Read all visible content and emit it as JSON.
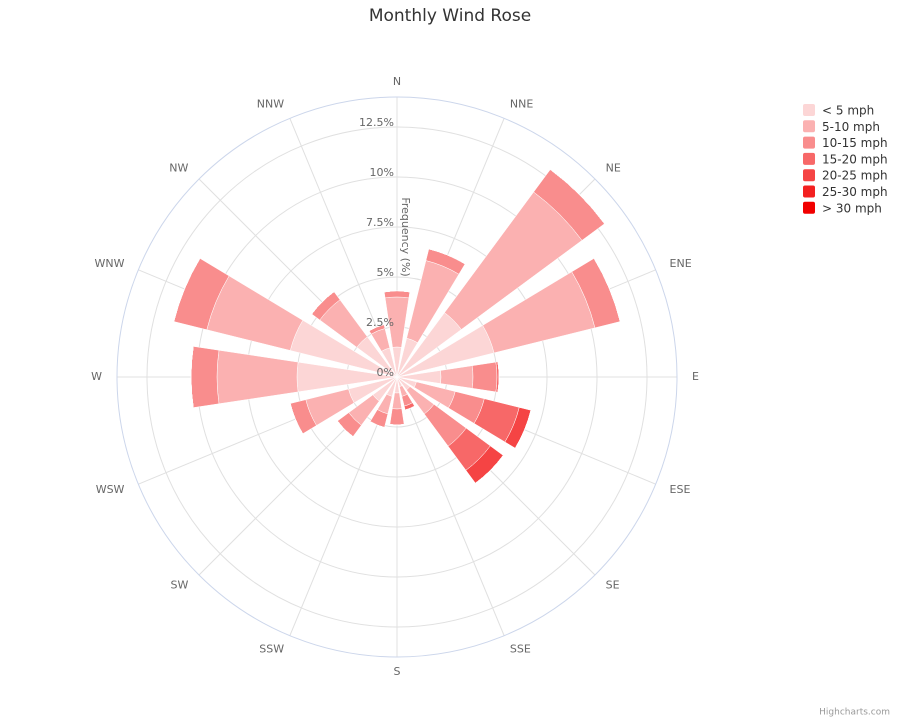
{
  "chart_data": {
    "type": "column",
    "polar": true,
    "stacking": "normal",
    "title": "Monthly Wind Rose",
    "y_axis_title": "Frequency (%)",
    "credits": "Highcharts.com",
    "legend_position": "top-right",
    "categories": [
      "N",
      "NNE",
      "NE",
      "ENE",
      "E",
      "ESE",
      "SE",
      "SSE",
      "S",
      "SSW",
      "SW",
      "WSW",
      "W",
      "WNW",
      "NW",
      "NNW"
    ],
    "ylim": [
      0,
      14
    ],
    "yticks": [
      {
        "value": 0,
        "label": "0%"
      },
      {
        "value": 2.5,
        "label": "2.5%"
      },
      {
        "value": 5,
        "label": "5%"
      },
      {
        "value": 7.5,
        "label": "7.5%"
      },
      {
        "value": 10,
        "label": "10%"
      },
      {
        "value": 12.5,
        "label": "12.5%"
      }
    ],
    "series": [
      {
        "name": "< 5 mph",
        "color": "#fcd6d6",
        "values": [
          1.5,
          2.0,
          4.0,
          5.0,
          2.2,
          1.0,
          0.8,
          0.5,
          0.8,
          1.0,
          1.5,
          2.5,
          5.0,
          5.5,
          2.5,
          1.5
        ]
      },
      {
        "name": "5-10 mph",
        "color": "#fbb1b1",
        "values": [
          2.5,
          4.0,
          7.5,
          5.2,
          1.6,
          2.0,
          1.5,
          0.5,
          0.8,
          0.9,
          1.5,
          2.2,
          4.0,
          4.3,
          2.3,
          1.0
        ]
      },
      {
        "name": "10-15 mph",
        "color": "#f98d8d",
        "values": [
          0.3,
          0.6,
          1.4,
          1.3,
          1.2,
          1.5,
          2.0,
          0.5,
          0.8,
          0.7,
          0.7,
          0.8,
          1.3,
          1.7,
          0.5,
          0.2
        ]
      },
      {
        "name": "15-20 mph",
        "color": "#f76868",
        "values": [
          0,
          0,
          0,
          0,
          0.1,
          1.8,
          1.5,
          0.2,
          0,
          0,
          0,
          0,
          0,
          0,
          0,
          0
        ]
      },
      {
        "name": "20-25 mph",
        "color": "#f54444",
        "values": [
          0,
          0,
          0,
          0,
          0,
          0.6,
          0.8,
          0,
          0,
          0,
          0,
          0,
          0,
          0,
          0,
          0
        ]
      },
      {
        "name": "25-30 mph",
        "color": "#f32020",
        "values": [
          0,
          0,
          0,
          0,
          0,
          0,
          0,
          0,
          0,
          0,
          0,
          0,
          0,
          0,
          0,
          0
        ]
      },
      {
        "name": "> 30 mph",
        "color": "#f10000",
        "values": [
          0,
          0,
          0,
          0,
          0,
          0,
          0,
          0,
          0,
          0,
          0,
          0,
          0,
          0,
          0,
          0
        ]
      }
    ]
  }
}
